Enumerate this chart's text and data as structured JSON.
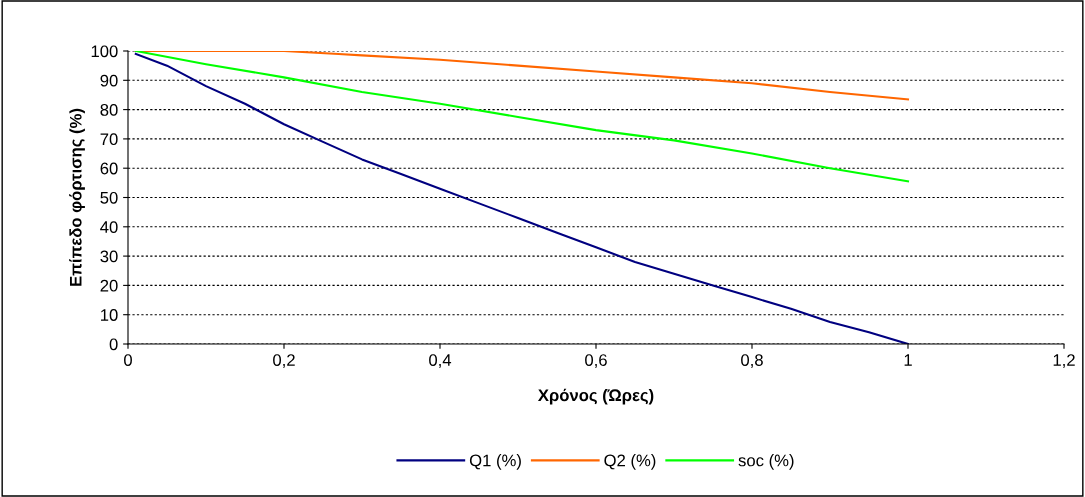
{
  "chart_data": {
    "type": "line",
    "xlabel": "Χρόνος (Ώρες)",
    "ylabel": "Επίπεδο φόρτισης (%)",
    "xlim": [
      0,
      1.2
    ],
    "xticks": [
      0,
      {
        "value": 0.2,
        "label": "0,2"
      },
      {
        "value": 0.4,
        "label": "0,4"
      },
      {
        "value": 0.6,
        "label": "0,6"
      },
      {
        "value": 0.8,
        "label": "0,8"
      },
      1,
      {
        "value": 1.2,
        "label": "1,2"
      }
    ],
    "ylim": [
      0,
      100
    ],
    "yticks": [
      0,
      10,
      20,
      30,
      40,
      50,
      60,
      70,
      80,
      90,
      100
    ],
    "grid": "y",
    "legend": "bottom",
    "marker": "none",
    "line_style": "solid",
    "series": [
      {
        "name": "Q1 (%)",
        "color": "#000080",
        "x": [
          0.01,
          0.05,
          0.1,
          0.15,
          0.2,
          0.25,
          0.3,
          0.35,
          0.4,
          0.45,
          0.5,
          0.55,
          0.6,
          0.65,
          0.7,
          0.75,
          0.8,
          0.85,
          0.9,
          0.95,
          1.0
        ],
        "values": [
          99,
          95,
          88,
          82,
          75,
          69,
          63,
          58,
          53,
          48,
          43,
          38,
          33,
          28,
          24,
          20,
          16,
          12,
          7.5,
          4,
          0
        ]
      },
      {
        "name": "Q2 (%)",
        "color": "#ff6600",
        "x": [
          0.01,
          0.1,
          0.2,
          0.27,
          0.3,
          0.4,
          0.5,
          0.6,
          0.7,
          0.8,
          0.9,
          1.0
        ],
        "values": [
          100,
          100,
          100,
          99,
          98.5,
          97,
          95,
          93,
          91,
          89,
          86,
          83.5
        ]
      },
      {
        "name": "soc (%)",
        "color": "#00ff00",
        "x": [
          0.01,
          0.1,
          0.2,
          0.3,
          0.4,
          0.5,
          0.6,
          0.7,
          0.8,
          0.9,
          1.0
        ],
        "values": [
          100,
          95.5,
          91,
          86,
          82,
          77.5,
          73,
          69.5,
          65,
          60,
          55.5
        ]
      }
    ]
  }
}
